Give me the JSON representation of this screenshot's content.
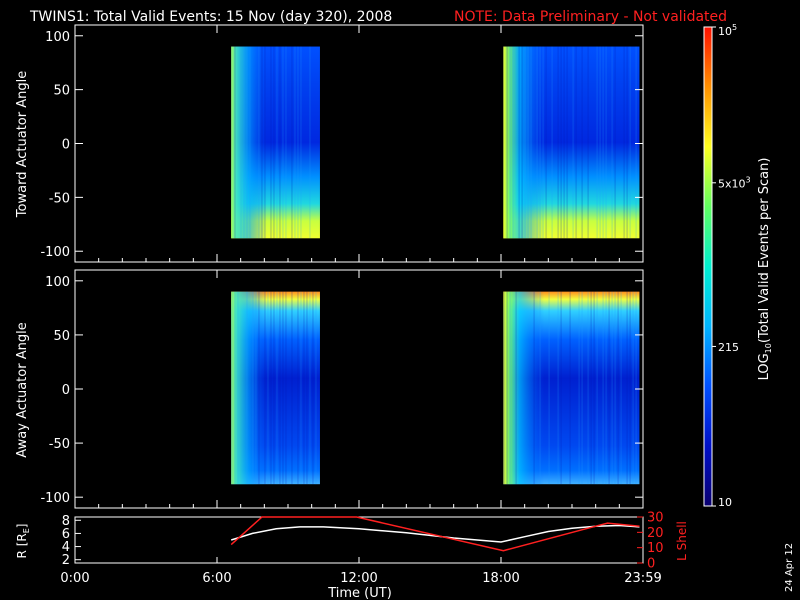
{
  "title": {
    "main": "TWINS1: Total Valid Events: 15 Nov (day 320), 2008",
    "note": "NOTE: Data Preliminary - Not validated",
    "note_color": "#ff2020"
  },
  "date_stamp": "24 Apr 12",
  "chart_data": [
    {
      "type": "heatmap",
      "name": "toward",
      "ylabel": "Toward Actuator Angle",
      "ylim": [
        -110,
        110
      ],
      "yticks": [
        "100",
        "50",
        "0",
        "-50",
        "-100"
      ],
      "ytick_values": [
        100,
        50,
        0,
        -50,
        -100
      ],
      "angle_range": [
        -88,
        90
      ],
      "coverage_hours": [
        [
          6.6,
          10.35
        ],
        [
          18.1,
          23.85
        ]
      ]
    },
    {
      "type": "heatmap",
      "name": "away",
      "ylabel": "Away Actuator Angle",
      "ylim": [
        -110,
        110
      ],
      "yticks": [
        "100",
        "50",
        "0",
        "-50",
        "-100"
      ],
      "ytick_values": [
        100,
        50,
        0,
        -50,
        -100
      ],
      "angle_range": [
        -88,
        90
      ],
      "coverage_hours": [
        [
          6.6,
          10.35
        ],
        [
          18.1,
          23.85
        ]
      ]
    },
    {
      "type": "line",
      "name": "orbit",
      "xlabel": "Time (UT)",
      "xlim": [
        0,
        24
      ],
      "xticks": [
        "0:00",
        "6:00",
        "12:00",
        "18:00",
        "23:59"
      ],
      "xtick_values": [
        0,
        6,
        12,
        18,
        24
      ],
      "ylabel_left": "R [R",
      "ylabel_left_sub": "E",
      "ylabel_left_close": "]",
      "ylim_left": [
        1.5,
        8.5
      ],
      "yticks_left": [
        "8",
        "6",
        "4",
        "2"
      ],
      "ytick_values_left": [
        8,
        6,
        4,
        2
      ],
      "ylabel_right": "L Shell",
      "ylim_right": [
        0,
        30
      ],
      "yticks_right": [
        "30",
        "20",
        "10",
        "0"
      ],
      "ytick_values_right": [
        30,
        20,
        10,
        0
      ],
      "series": [
        {
          "label": "R",
          "color": "#ffffff",
          "axis": "left",
          "x": [
            6.6,
            7.5,
            8.5,
            9.5,
            10.5,
            12,
            14,
            16,
            17,
            18,
            19,
            20,
            21,
            22,
            23,
            23.85
          ],
          "y": [
            5.0,
            6.0,
            6.7,
            7.0,
            7.0,
            6.7,
            6.1,
            5.3,
            5.0,
            4.7,
            5.5,
            6.3,
            6.8,
            7.1,
            7.2,
            7.0
          ]
        },
        {
          "label": "L Shell",
          "color": "#ff2020",
          "axis": "right",
          "x": [
            6.6,
            7.9,
            8.1,
            11.7,
            11.9,
            18.1,
            21.5,
            22.5,
            23.85
          ],
          "y": [
            12,
            30,
            30,
            30,
            30,
            8,
            22,
            26,
            24
          ]
        }
      ]
    }
  ],
  "colorbar": {
    "label": "LOG",
    "label_sub": "10",
    "label_rest": "(Total Valid Events per Scan)",
    "ticks": [
      {
        "label": "10",
        "value": 10
      },
      {
        "label": "215",
        "value": 215
      },
      {
        "label": "5x10",
        "sup": "3",
        "value": 5000
      },
      {
        "label": "10",
        "sup": "5",
        "value": 100000
      }
    ],
    "range": [
      10,
      100000
    ],
    "colors": [
      "#0a0070",
      "#0010c8",
      "#0050ff",
      "#00b4ff",
      "#00f0d0",
      "#60ff60",
      "#ffff20",
      "#ff9000",
      "#ff1000"
    ]
  }
}
